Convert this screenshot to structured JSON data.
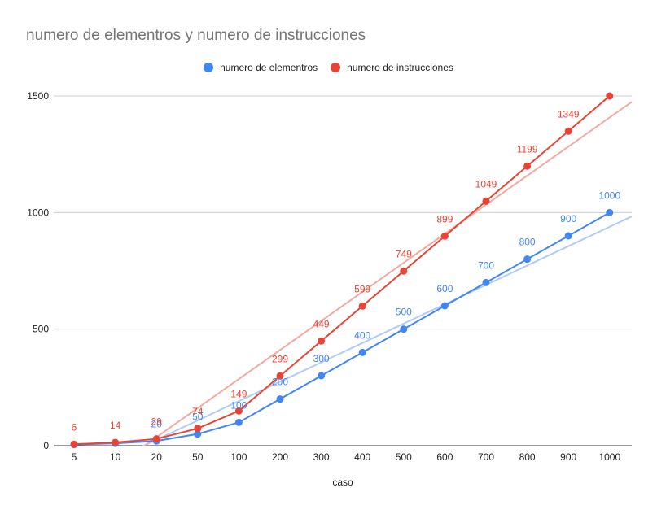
{
  "chart_data": {
    "type": "line",
    "title": "numero de elementros y numero de instrucciones",
    "xlabel": "caso",
    "ylabel": "",
    "categories": [
      "5",
      "10",
      "20",
      "50",
      "100",
      "200",
      "300",
      "400",
      "500",
      "600",
      "700",
      "800",
      "900",
      "1000"
    ],
    "ylim": [
      0,
      1500
    ],
    "yticks": [
      0,
      500,
      1000,
      1500
    ],
    "grid": true,
    "legend_position": "top",
    "series": [
      {
        "name": "numero de elementros",
        "color": "#4285f4",
        "trendline_color": "#aecbfa",
        "values": [
          5,
          10,
          20,
          50,
          100,
          200,
          300,
          400,
          500,
          600,
          700,
          800,
          900,
          1000
        ],
        "labels": [
          "",
          "",
          "20",
          "50",
          "100",
          "200",
          "300",
          "400",
          "500",
          "600",
          "700",
          "800",
          "900",
          "1000"
        ],
        "trendline": true
      },
      {
        "name": "numero de instrucciones",
        "color": "#ea4335",
        "trendline_color": "#f4a9a1",
        "values": [
          6,
          14,
          29,
          74,
          149,
          299,
          449,
          599,
          749,
          899,
          1049,
          1199,
          1349,
          1500
        ],
        "labels": [
          "6",
          "14",
          "29",
          "74",
          "149",
          "299",
          "449",
          "599",
          "749",
          "899",
          "1049",
          "1199",
          "1349",
          ""
        ],
        "trendline": true
      }
    ]
  }
}
